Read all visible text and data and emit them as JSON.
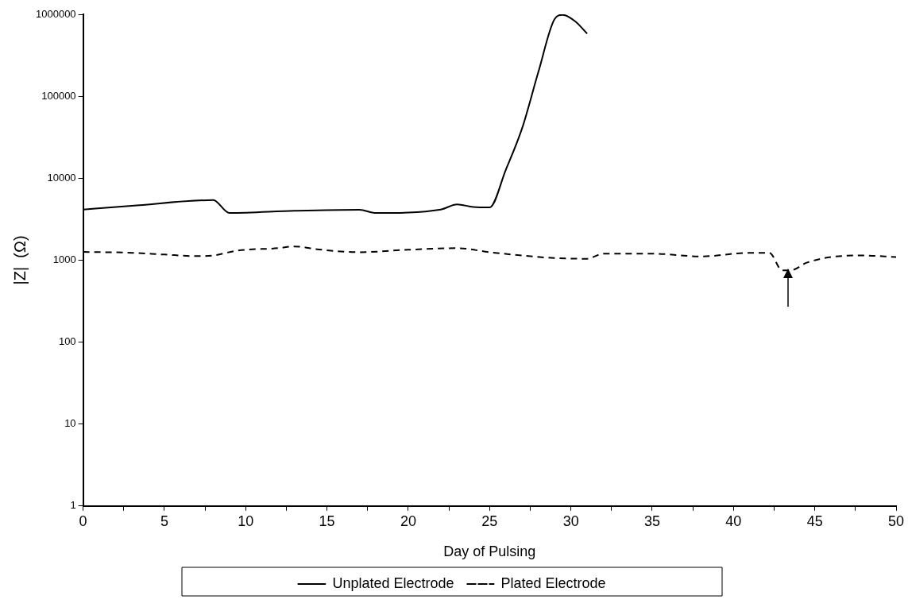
{
  "chart_data": {
    "type": "line",
    "xlabel": "Day of Pulsing",
    "ylabel": "|Z|  (Ω)",
    "xlim": [
      0,
      50
    ],
    "xticks": [
      0,
      {
        "value": 2.5,
        "label": null
      },
      5,
      {
        "value": 7.5,
        "label": null
      },
      10,
      {
        "value": 12.5,
        "label": null
      },
      15,
      {
        "value": 17.5,
        "label": null
      },
      20,
      {
        "value": 22.5,
        "label": null
      },
      25,
      {
        "value": 27.5,
        "label": null
      },
      30,
      {
        "value": 32.5,
        "label": null
      },
      35,
      {
        "value": 37.5,
        "label": null
      },
      40,
      {
        "value": 42.5,
        "label": null
      },
      45,
      {
        "value": 47.5,
        "label": null
      },
      50
    ],
    "ylim": [
      1,
      1000000
    ],
    "yticks": [
      1,
      10,
      100,
      1000,
      10000,
      100000,
      1000000
    ],
    "log": "y",
    "grid": false,
    "legend": "bottom",
    "marker": "none",
    "series": [
      {
        "name": "Unplated Electrode",
        "color": "#000000",
        "line_style": "solid",
        "x": [
          0,
          3,
          8,
          9,
          13,
          17,
          18,
          22,
          23,
          24,
          25,
          26,
          27,
          28,
          29,
          29.5,
          30.3,
          31
        ],
        "values": [
          4150,
          4600,
          5400,
          3760,
          4000,
          4130,
          3760,
          4150,
          4800,
          4450,
          4400,
          12700,
          40700,
          198000,
          875000,
          985000,
          810000,
          580000
        ]
      },
      {
        "name": "Plated Electrode",
        "color": "#000000",
        "line_style": "dashed",
        "x": [
          0,
          3,
          5,
          7,
          8,
          9.5,
          12,
          13,
          14.5,
          17,
          20,
          23,
          25,
          27,
          29,
          31,
          32,
          35,
          38,
          41,
          42.2,
          43,
          43.5,
          44.5,
          46,
          48,
          50
        ],
        "values": [
          1260,
          1230,
          1170,
          1120,
          1140,
          1310,
          1400,
          1470,
          1350,
          1250,
          1340,
          1400,
          1250,
          1140,
          1060,
          1040,
          1200,
          1200,
          1110,
          1230,
          1230,
          750,
          750,
          930,
          1090,
          1140,
          1090
        ]
      }
    ]
  }
}
